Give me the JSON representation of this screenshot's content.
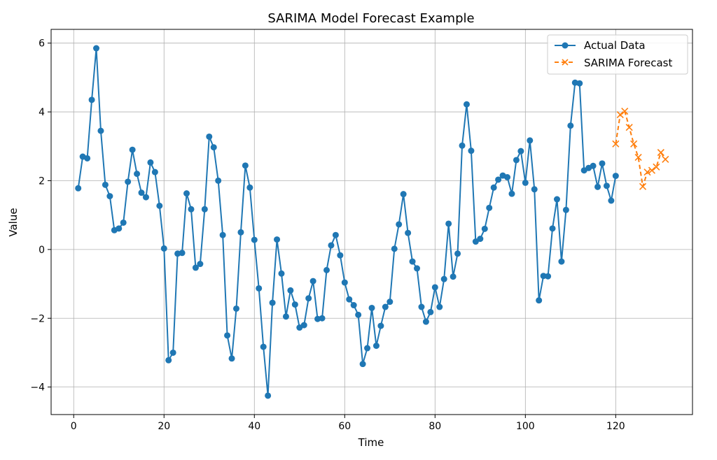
{
  "chart_data": {
    "type": "line",
    "title": "SARIMA Model Forecast Example",
    "xlabel": "Time",
    "ylabel": "Value",
    "xlim": [
      -5,
      137
    ],
    "ylim": [
      -4.8,
      6.4
    ],
    "xticks": [
      0,
      20,
      40,
      60,
      80,
      100,
      120
    ],
    "yticks": [
      -4,
      -2,
      0,
      2,
      4,
      6
    ],
    "xtick_labels": [
      "0",
      "20",
      "40",
      "60",
      "80",
      "100",
      "120"
    ],
    "ytick_labels": [
      "−4",
      "−2",
      "0",
      "2",
      "4",
      "6"
    ],
    "grid": true,
    "legend_position": "top-right",
    "series": [
      {
        "name": "Actual Data",
        "color": "#1f77b4",
        "style": "solid",
        "marker": "circle",
        "x": [
          1,
          2,
          3,
          4,
          5,
          6,
          7,
          8,
          9,
          10,
          11,
          12,
          13,
          14,
          15,
          16,
          17,
          18,
          19,
          20,
          21,
          22,
          23,
          24,
          25,
          26,
          27,
          28,
          29,
          30,
          31,
          32,
          33,
          34,
          35,
          36,
          37,
          38,
          39,
          40,
          41,
          42,
          43,
          44,
          45,
          46,
          47,
          48,
          49,
          50,
          51,
          52,
          53,
          54,
          55,
          56,
          57,
          58,
          59,
          60,
          61,
          62,
          63,
          64,
          65,
          66,
          67,
          68,
          69,
          70,
          71,
          72,
          73,
          74,
          75,
          76,
          77,
          78,
          79,
          80,
          81,
          82,
          83,
          84,
          85,
          86,
          87,
          88,
          89,
          90,
          91,
          92,
          93,
          94,
          95,
          96,
          97,
          98,
          99,
          100,
          101,
          102,
          103,
          104,
          105,
          106,
          107,
          108,
          109,
          110,
          111,
          112,
          113,
          114,
          115,
          116,
          117,
          118,
          119,
          120
        ],
        "values": [
          1.78,
          2.7,
          2.65,
          4.35,
          5.85,
          3.45,
          1.88,
          1.55,
          0.56,
          0.61,
          0.78,
          1.97,
          2.9,
          2.2,
          1.65,
          1.52,
          2.53,
          2.25,
          1.27,
          0.03,
          -3.22,
          -3.0,
          -0.12,
          -0.1,
          1.63,
          1.17,
          -0.53,
          -0.42,
          1.17,
          3.28,
          2.97,
          2.0,
          0.42,
          -2.5,
          -3.17,
          -1.72,
          0.5,
          2.44,
          1.8,
          0.28,
          -1.13,
          -2.83,
          -4.25,
          -1.55,
          0.29,
          -0.7,
          -1.95,
          -1.19,
          -1.6,
          -2.27,
          -2.2,
          -1.42,
          -0.92,
          -2.02,
          -2.0,
          -0.6,
          0.12,
          0.42,
          -0.17,
          -0.96,
          -1.45,
          -1.62,
          -1.9,
          -3.33,
          -2.87,
          -1.7,
          -2.8,
          -2.22,
          -1.67,
          -1.52,
          0.02,
          0.73,
          1.61,
          0.48,
          -0.35,
          -0.55,
          -1.67,
          -2.1,
          -1.82,
          -1.1,
          -1.67,
          -0.86,
          0.75,
          -0.79,
          -0.12,
          3.02,
          4.22,
          2.87,
          0.23,
          0.31,
          0.6,
          1.21,
          1.8,
          2.03,
          2.15,
          2.1,
          1.62,
          2.6,
          2.86,
          1.94,
          3.17,
          1.75,
          -1.48,
          -0.77,
          -0.78,
          0.61,
          1.46,
          -0.35,
          1.15,
          3.6,
          4.85,
          4.83,
          2.3,
          2.37,
          2.43,
          1.82,
          2.5,
          1.85,
          1.42,
          2.14
        ]
      },
      {
        "name": "SARIMA Forecast",
        "color": "#ff7f0e",
        "style": "dashed",
        "marker": "x",
        "x": [
          120,
          121,
          122,
          123,
          124,
          125,
          126,
          127,
          128,
          129,
          130,
          131
        ],
        "values": [
          3.07,
          3.92,
          4.02,
          3.55,
          3.07,
          2.68,
          1.83,
          2.25,
          2.3,
          2.4,
          2.82,
          2.62
        ]
      }
    ]
  }
}
